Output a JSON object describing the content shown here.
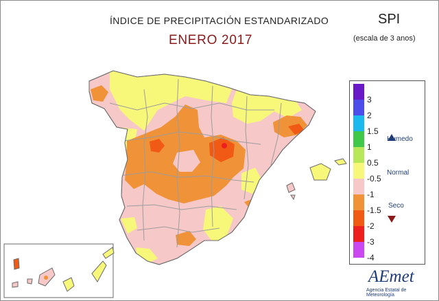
{
  "title": "ÍNDICE DE PRECIPITACIÓN ESTANDARIZADO",
  "subtitle": "ENERO 2017",
  "index_label": "SPI",
  "scale_note": "(escala de 3 anos)",
  "legend": {
    "ticks": [
      "3",
      "2",
      "1.5",
      "1",
      "0.5",
      "-0.5",
      "-1",
      "-1.5",
      "-2",
      "-3",
      "-4"
    ],
    "colors": [
      "#6a19c8",
      "#4d4dea",
      "#1db9ec",
      "#41c84a",
      "#b8e85a",
      "#f7f77a",
      "#f7c8c8",
      "#f09238",
      "#f05a14",
      "#ee1f1f",
      "#c948f0"
    ],
    "humedo": "Humedo",
    "normal": "Normal",
    "seco": "Seco",
    "humedo_arrow_color": "#1f3b7a",
    "seco_arrow_color": "#8b1a1a"
  },
  "map_colors": {
    "normal_dry": "#f7c8c8",
    "normal_wet": "#f7f77a",
    "dry": "#f09238",
    "very_dry": "#f05a14",
    "extreme": "#ee1f1f",
    "borders": "#9c9c9c"
  },
  "logo": {
    "name": "AEmet",
    "tagline": "Agencia Estatal de Meteorología"
  }
}
